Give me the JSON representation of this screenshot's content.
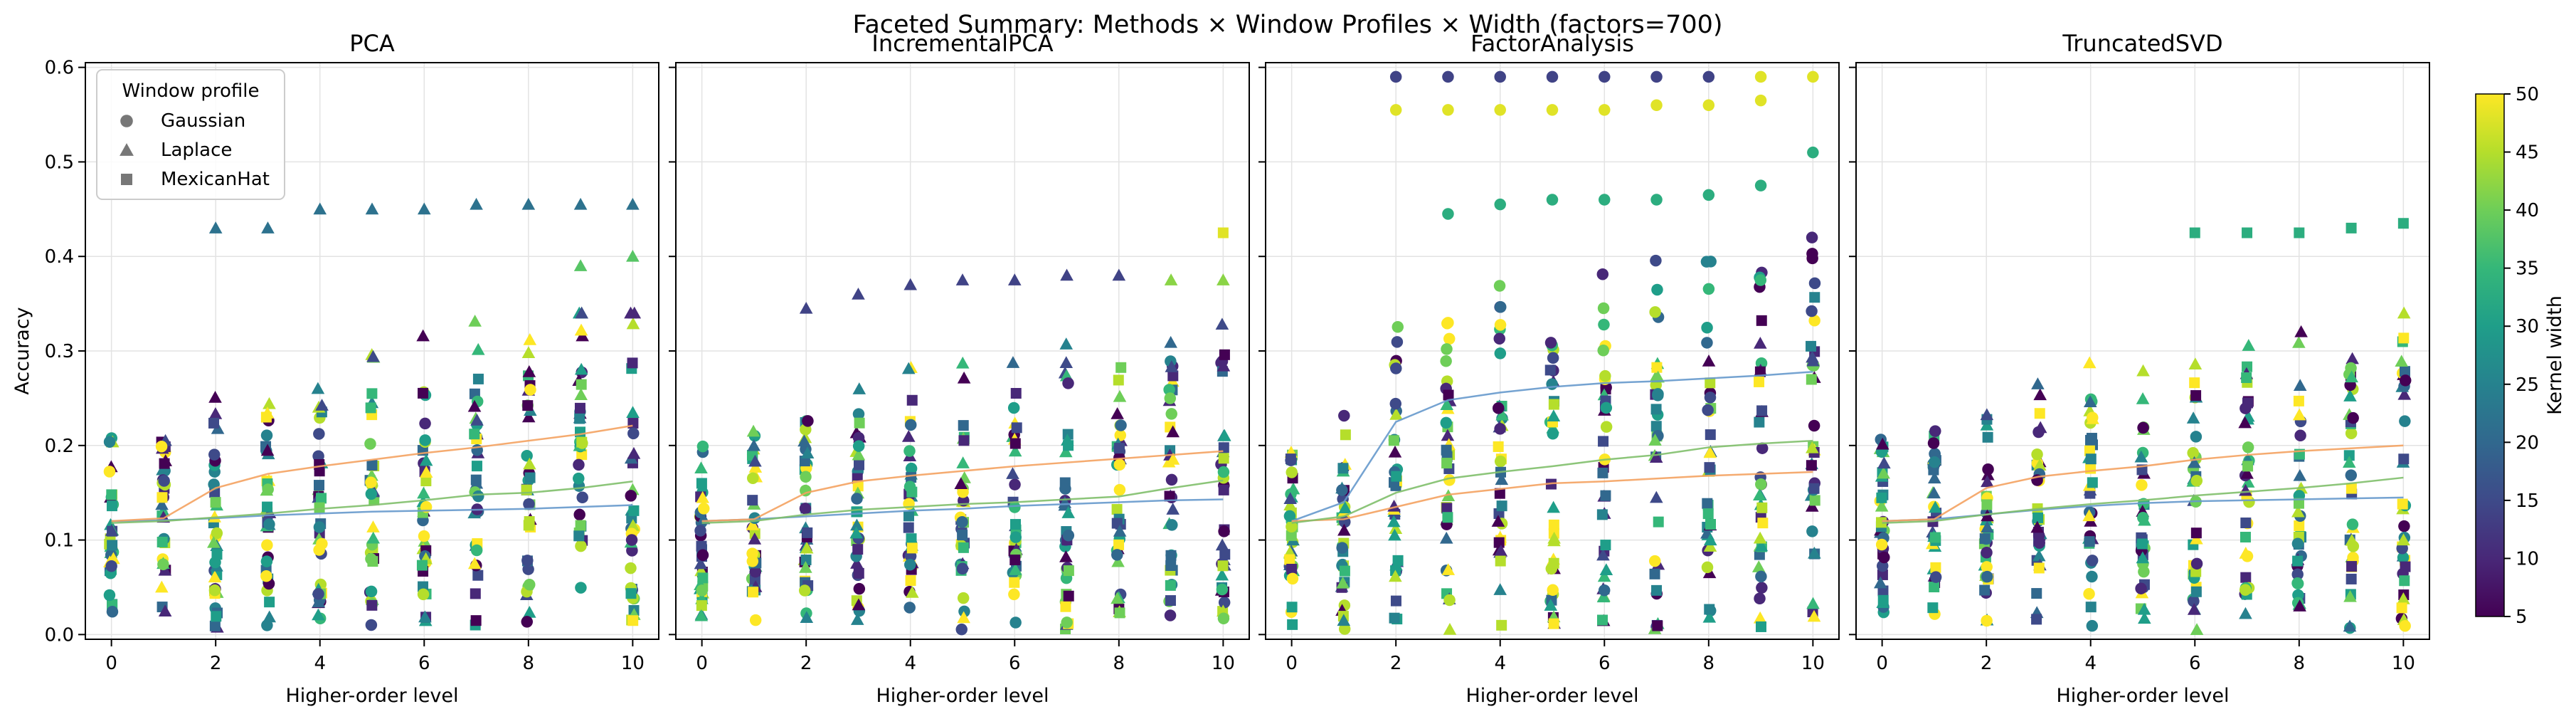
{
  "figure_title": "Faceted Summary: Methods × Window Profiles × Width (factors=700)",
  "chart_data": {
    "type": "scatter",
    "title": "Faceted Summary: Methods × Window Profiles × Width (factors=700)",
    "xlabel": "Higher-order level",
    "ylabel": "Accuracy",
    "xlim": [
      -0.5,
      10.5
    ],
    "ylim": [
      -0.005,
      0.605
    ],
    "x_ticks": [
      0,
      2,
      4,
      6,
      8,
      10
    ],
    "y_ticks": [
      0.0,
      0.1,
      0.2,
      0.3,
      0.4,
      0.5,
      0.6
    ],
    "y_tick_labels": [
      "0.0",
      "0.1",
      "0.2",
      "0.3",
      "0.4",
      "0.5",
      "0.6"
    ],
    "grid": true,
    "legend": {
      "title": "Window profile",
      "placement": "top-left",
      "entries": [
        {
          "label": "Gaussian",
          "marker": "circle"
        },
        {
          "label": "Laplace",
          "marker": "triangle"
        },
        {
          "label": "MexicanHat",
          "marker": "square"
        }
      ]
    },
    "colorbar": {
      "label": "Kernel width",
      "range": [
        5,
        50
      ],
      "ticks": [
        5,
        10,
        15,
        20,
        25,
        30,
        35,
        40,
        45,
        50
      ],
      "colormap": [
        "#440154",
        "#482878",
        "#3e4a89",
        "#31688e",
        "#26828e",
        "#1f9e89",
        "#35b779",
        "#6ece58",
        "#b5de2b",
        "#fde725"
      ]
    },
    "trend_colors": {
      "Gaussian": "#6699cc",
      "Laplace": "#f4a261",
      "MexicanHat": "#7fbf6a"
    },
    "facets": [
      {
        "title": "PCA",
        "trends": [
          {
            "profile": "Gaussian",
            "x": [
              0,
              1,
              2,
              3,
              4,
              5,
              6,
              7,
              8,
              9,
              10
            ],
            "y": [
              0.12,
              0.121,
              0.123,
              0.126,
              0.128,
              0.13,
              0.131,
              0.132,
              0.133,
              0.135,
              0.137
            ]
          },
          {
            "profile": "Laplace",
            "x": [
              0,
              1,
              2,
              3,
              4,
              5,
              6,
              7,
              8,
              9,
              10
            ],
            "y": [
              0.12,
              0.123,
              0.155,
              0.17,
              0.178,
              0.185,
              0.192,
              0.198,
              0.205,
              0.212,
              0.221
            ]
          },
          {
            "profile": "MexicanHat",
            "x": [
              0,
              1,
              2,
              3,
              4,
              5,
              6,
              7,
              8,
              9,
              10
            ],
            "y": [
              0.118,
              0.12,
              0.124,
              0.128,
              0.133,
              0.137,
              0.142,
              0.148,
              0.15,
              0.155,
              0.162
            ]
          }
        ],
        "outliers": [
          {
            "x": 2,
            "y": 0.43,
            "profile": "Laplace",
            "width": 22
          },
          {
            "x": 3,
            "y": 0.43,
            "profile": "Laplace",
            "width": 22
          },
          {
            "x": 4,
            "y": 0.45,
            "profile": "Laplace",
            "width": 22
          },
          {
            "x": 5,
            "y": 0.45,
            "profile": "Laplace",
            "width": 22
          },
          {
            "x": 6,
            "y": 0.45,
            "profile": "Laplace",
            "width": 22
          },
          {
            "x": 7,
            "y": 0.455,
            "profile": "Laplace",
            "width": 22
          },
          {
            "x": 8,
            "y": 0.455,
            "profile": "Laplace",
            "width": 22
          },
          {
            "x": 9,
            "y": 0.455,
            "profile": "Laplace",
            "width": 22
          },
          {
            "x": 10,
            "y": 0.455,
            "profile": "Laplace",
            "width": 22
          },
          {
            "x": 9,
            "y": 0.39,
            "profile": "Laplace",
            "width": 38
          },
          {
            "x": 10,
            "y": 0.4,
            "profile": "Laplace",
            "width": 38
          }
        ]
      },
      {
        "title": "IncrementalPCA",
        "trends": [
          {
            "profile": "Gaussian",
            "x": [
              0,
              1,
              2,
              3,
              4,
              5,
              6,
              7,
              8,
              9,
              10
            ],
            "y": [
              0.12,
              0.122,
              0.125,
              0.128,
              0.131,
              0.133,
              0.136,
              0.138,
              0.14,
              0.142,
              0.143
            ]
          },
          {
            "profile": "Laplace",
            "x": [
              0,
              1,
              2,
              3,
              4,
              5,
              6,
              7,
              8,
              9,
              10
            ],
            "y": [
              0.12,
              0.122,
              0.15,
              0.162,
              0.168,
              0.173,
              0.178,
              0.182,
              0.186,
              0.19,
              0.194
            ]
          },
          {
            "profile": "MexicanHat",
            "x": [
              0,
              1,
              2,
              3,
              4,
              5,
              6,
              7,
              8,
              9,
              10
            ],
            "y": [
              0.118,
              0.12,
              0.127,
              0.132,
              0.135,
              0.138,
              0.14,
              0.143,
              0.146,
              0.155,
              0.163
            ]
          }
        ],
        "outliers": [
          {
            "x": 10,
            "y": 0.425,
            "profile": "MexicanHat",
            "width": 48
          },
          {
            "x": 2,
            "y": 0.345,
            "profile": "Laplace",
            "width": 14
          },
          {
            "x": 3,
            "y": 0.36,
            "profile": "Laplace",
            "width": 14
          },
          {
            "x": 4,
            "y": 0.37,
            "profile": "Laplace",
            "width": 14
          },
          {
            "x": 5,
            "y": 0.375,
            "profile": "Laplace",
            "width": 14
          },
          {
            "x": 6,
            "y": 0.375,
            "profile": "Laplace",
            "width": 14
          },
          {
            "x": 7,
            "y": 0.38,
            "profile": "Laplace",
            "width": 14
          },
          {
            "x": 8,
            "y": 0.38,
            "profile": "Laplace",
            "width": 14
          },
          {
            "x": 9,
            "y": 0.375,
            "profile": "Laplace",
            "width": 42
          },
          {
            "x": 10,
            "y": 0.375,
            "profile": "Laplace",
            "width": 42
          }
        ]
      },
      {
        "title": "FactorAnalysis",
        "trends": [
          {
            "profile": "Gaussian",
            "x": [
              0,
              1,
              2,
              3,
              4,
              5,
              6,
              7,
              8,
              9,
              10
            ],
            "y": [
              0.12,
              0.14,
              0.225,
              0.248,
              0.256,
              0.262,
              0.266,
              0.268,
              0.271,
              0.274,
              0.278
            ]
          },
          {
            "profile": "Laplace",
            "x": [
              0,
              1,
              2,
              3,
              4,
              5,
              6,
              7,
              8,
              9,
              10
            ],
            "y": [
              0.12,
              0.122,
              0.135,
              0.148,
              0.154,
              0.16,
              0.162,
              0.165,
              0.168,
              0.17,
              0.172
            ]
          },
          {
            "profile": "MexicanHat",
            "x": [
              0,
              1,
              2,
              3,
              4,
              5,
              6,
              7,
              8,
              9,
              10
            ],
            "y": [
              0.118,
              0.125,
              0.15,
              0.165,
              0.172,
              0.178,
              0.185,
              0.19,
              0.198,
              0.202,
              0.205
            ]
          }
        ],
        "outliers": [
          {
            "x": 2,
            "y": 0.59,
            "profile": "Gaussian",
            "width": 14
          },
          {
            "x": 3,
            "y": 0.59,
            "profile": "Gaussian",
            "width": 14
          },
          {
            "x": 4,
            "y": 0.59,
            "profile": "Gaussian",
            "width": 14
          },
          {
            "x": 5,
            "y": 0.59,
            "profile": "Gaussian",
            "width": 14
          },
          {
            "x": 6,
            "y": 0.59,
            "profile": "Gaussian",
            "width": 14
          },
          {
            "x": 7,
            "y": 0.59,
            "profile": "Gaussian",
            "width": 14
          },
          {
            "x": 8,
            "y": 0.59,
            "profile": "Gaussian",
            "width": 14
          },
          {
            "x": 9,
            "y": 0.59,
            "profile": "Gaussian",
            "width": 48
          },
          {
            "x": 10,
            "y": 0.59,
            "profile": "Gaussian",
            "width": 48
          },
          {
            "x": 2,
            "y": 0.555,
            "profile": "Gaussian",
            "width": 48
          },
          {
            "x": 3,
            "y": 0.555,
            "profile": "Gaussian",
            "width": 48
          },
          {
            "x": 4,
            "y": 0.555,
            "profile": "Gaussian",
            "width": 48
          },
          {
            "x": 5,
            "y": 0.555,
            "profile": "Gaussian",
            "width": 48
          },
          {
            "x": 6,
            "y": 0.555,
            "profile": "Gaussian",
            "width": 48
          },
          {
            "x": 7,
            "y": 0.56,
            "profile": "Gaussian",
            "width": 48
          },
          {
            "x": 8,
            "y": 0.56,
            "profile": "Gaussian",
            "width": 48
          },
          {
            "x": 9,
            "y": 0.565,
            "profile": "Gaussian",
            "width": 48
          },
          {
            "x": 10,
            "y": 0.51,
            "profile": "Gaussian",
            "width": 33
          },
          {
            "x": 9,
            "y": 0.475,
            "profile": "Gaussian",
            "width": 33
          },
          {
            "x": 8,
            "y": 0.465,
            "profile": "Gaussian",
            "width": 33
          },
          {
            "x": 7,
            "y": 0.46,
            "profile": "Gaussian",
            "width": 33
          },
          {
            "x": 6,
            "y": 0.46,
            "profile": "Gaussian",
            "width": 33
          },
          {
            "x": 5,
            "y": 0.46,
            "profile": "Gaussian",
            "width": 33
          },
          {
            "x": 4,
            "y": 0.455,
            "profile": "Gaussian",
            "width": 33
          },
          {
            "x": 3,
            "y": 0.445,
            "profile": "Gaussian",
            "width": 33
          }
        ]
      },
      {
        "title": "TruncatedSVD",
        "trends": [
          {
            "profile": "Gaussian",
            "x": [
              0,
              1,
              2,
              3,
              4,
              5,
              6,
              7,
              8,
              9,
              10
            ],
            "y": [
              0.12,
              0.122,
              0.127,
              0.132,
              0.136,
              0.139,
              0.141,
              0.142,
              0.143,
              0.144,
              0.145
            ]
          },
          {
            "profile": "Laplace",
            "x": [
              0,
              1,
              2,
              3,
              4,
              5,
              6,
              7,
              8,
              9,
              10
            ],
            "y": [
              0.12,
              0.122,
              0.155,
              0.167,
              0.173,
              0.178,
              0.185,
              0.19,
              0.194,
              0.197,
              0.2
            ]
          },
          {
            "profile": "MexicanHat",
            "x": [
              0,
              1,
              2,
              3,
              4,
              5,
              6,
              7,
              8,
              9,
              10
            ],
            "y": [
              0.118,
              0.12,
              0.127,
              0.133,
              0.138,
              0.142,
              0.147,
              0.151,
              0.155,
              0.16,
              0.166
            ]
          }
        ],
        "outliers": [
          {
            "x": 6,
            "y": 0.425,
            "profile": "MexicanHat",
            "width": 33
          },
          {
            "x": 7,
            "y": 0.425,
            "profile": "MexicanHat",
            "width": 33
          },
          {
            "x": 8,
            "y": 0.425,
            "profile": "MexicanHat",
            "width": 33
          },
          {
            "x": 9,
            "y": 0.43,
            "profile": "MexicanHat",
            "width": 33
          },
          {
            "x": 10,
            "y": 0.435,
            "profile": "MexicanHat",
            "width": 33
          }
        ]
      }
    ]
  }
}
